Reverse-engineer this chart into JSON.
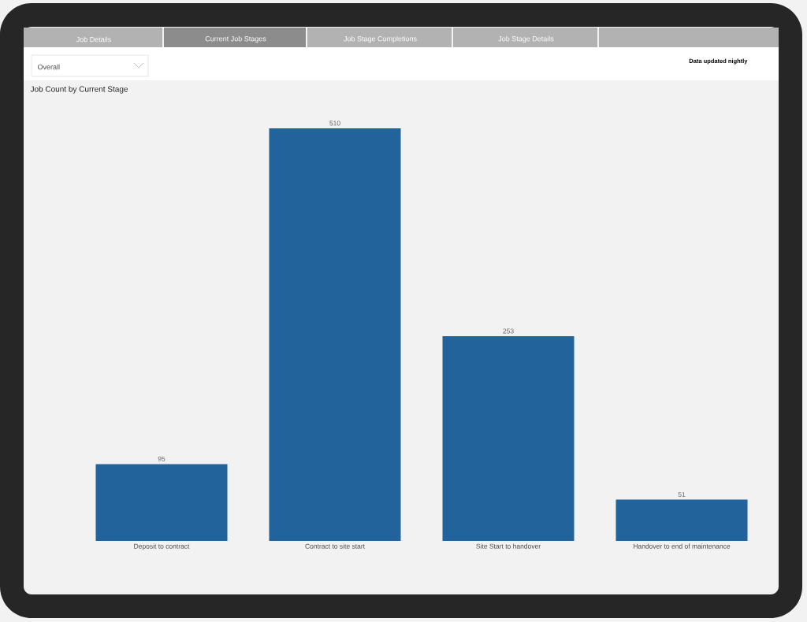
{
  "chart_data": {
    "type": "bar",
    "title": "Job Count by Current Stage",
    "categories": [
      "Deposit to contract",
      "Contract to site start",
      "Site Start to handover",
      "Handover to end of maintenance"
    ],
    "values": [
      95,
      510,
      253,
      51
    ],
    "color": "#23639b",
    "data_labels": true,
    "annotations": [
      "Job Details",
      "Current Job Stages",
      "Job Stage Completions",
      "Job Stage Details",
      "Overall",
      "Data updated nightly"
    ]
  }
}
